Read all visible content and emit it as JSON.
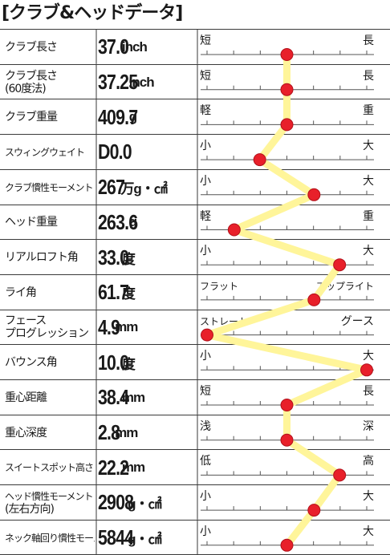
{
  "chart_data": {
    "type": "line",
    "title": "[クラブ&ヘッドデータ]",
    "rows": [
      {
        "label": [
          "クラブ長さ"
        ],
        "value": "37.0",
        "unit": "inch",
        "left": "短",
        "right": "長",
        "level": 0.5
      },
      {
        "label": [
          "クラブ長さ",
          "(60度法)"
        ],
        "value": "37.25",
        "unit": "inch",
        "left": "短",
        "right": "長",
        "level": 0.5
      },
      {
        "label": [
          "クラブ重量"
        ],
        "value": "409.7",
        "unit": "g",
        "left": "軽",
        "right": "重",
        "level": 0.5
      },
      {
        "label": [
          "スウィングウェイト"
        ],
        "value": "D0.0",
        "unit": "",
        "left": "小",
        "right": "大",
        "level": 0.33
      },
      {
        "label": [
          "クラブ慣性モーメント"
        ],
        "value": "267",
        "unit": "万g・㎠",
        "left": "小",
        "right": "大",
        "level": 0.67
      },
      {
        "label": [
          "ヘッド重量"
        ],
        "value": "263.6",
        "unit": "g",
        "left": "軽",
        "right": "重",
        "level": 0.17
      },
      {
        "label": [
          "リアルロフト角"
        ],
        "value": "33.0",
        "unit": "度",
        "left": "小",
        "right": "大",
        "level": 0.83
      },
      {
        "label": [
          "ライ角"
        ],
        "value": "61.7",
        "unit": "度",
        "left": "フラット",
        "right": "アップライト",
        "level": 0.67
      },
      {
        "label": [
          "フェース",
          "プログレッション"
        ],
        "value": "4.9",
        "unit": "mm",
        "left": "ストレート",
        "right": "グース",
        "level": 0.0
      },
      {
        "label": [
          "バウンス角"
        ],
        "value": "10.0",
        "unit": "度",
        "left": "小",
        "right": "大",
        "level": 1.0
      },
      {
        "label": [
          "重心距離"
        ],
        "value": "38.4",
        "unit": "mm",
        "left": "短",
        "right": "長",
        "level": 0.5
      },
      {
        "label": [
          "重心深度"
        ],
        "value": "2.8",
        "unit": "mm",
        "left": "浅",
        "right": "深",
        "level": 0.5
      },
      {
        "label": [
          "スイートスポット高さ"
        ],
        "value": "22.2",
        "unit": "mm",
        "left": "低",
        "right": "高",
        "level": 0.83
      },
      {
        "label": [
          "ヘッド慣性モーメント",
          "(左右方向)"
        ],
        "value": "2908",
        "unit": "g・㎠",
        "left": "小",
        "right": "大",
        "level": 0.67
      },
      {
        "label": [
          "ネック軸回り慣性モーメント"
        ],
        "value": "5844",
        "unit": "g・㎠",
        "left": "小",
        "right": "大",
        "level": 0.5
      }
    ],
    "colors": {
      "line": "#fff59a",
      "marker": "#e8202a",
      "border": "#3a3a3a"
    }
  }
}
